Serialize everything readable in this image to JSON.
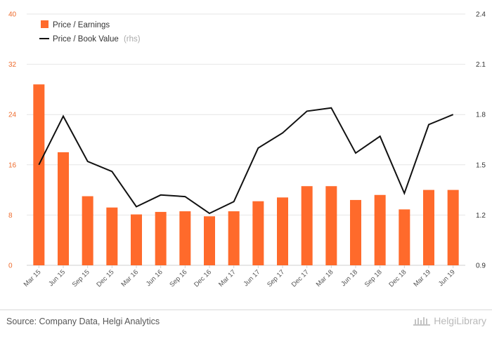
{
  "chart_data": {
    "type": "bar+line",
    "categories": [
      "Mar 15",
      "Jun 15",
      "Sep 15",
      "Dec 15",
      "Mar 16",
      "Jun 16",
      "Sep 16",
      "Dec 16",
      "Mar 17",
      "Jun 17",
      "Sep 17",
      "Dec 17",
      "Mar 18",
      "Jun 18",
      "Sep 18",
      "Dec 18",
      "Mar 19",
      "Jun 19"
    ],
    "series": [
      {
        "name": "Price / Earnings",
        "type": "bar",
        "axis": "left",
        "color": "#ff6a2b",
        "values": [
          28.8,
          18.0,
          11.0,
          9.2,
          8.1,
          8.5,
          8.6,
          7.8,
          8.6,
          10.2,
          10.8,
          12.6,
          12.6,
          10.4,
          11.2,
          8.9,
          12.0,
          12.0
        ]
      },
      {
        "name": "Price / Book Value",
        "type": "line",
        "axis": "right",
        "color": "#111111",
        "values": [
          1.5,
          1.79,
          1.52,
          1.46,
          1.25,
          1.32,
          1.31,
          1.21,
          1.28,
          1.6,
          1.69,
          1.82,
          1.84,
          1.57,
          1.67,
          1.33,
          1.74,
          1.8
        ]
      }
    ],
    "y_left": {
      "ylim": [
        0,
        40
      ],
      "ticks": [
        "0",
        "8",
        "16",
        "24",
        "32",
        "40"
      ],
      "color": "#ee6a2b"
    },
    "y_right": {
      "ylim": [
        0.9,
        2.4
      ],
      "ticks": [
        "0.9",
        "1.2",
        "1.5",
        "1.8",
        "2.1",
        "2.4"
      ]
    },
    "grid": true,
    "legend": {
      "placement": "top-left",
      "rhs_note": "(rhs)"
    }
  },
  "footer": {
    "source": "Source: Company Data, Helgi Analytics",
    "brand": "HelgiLibrary"
  }
}
